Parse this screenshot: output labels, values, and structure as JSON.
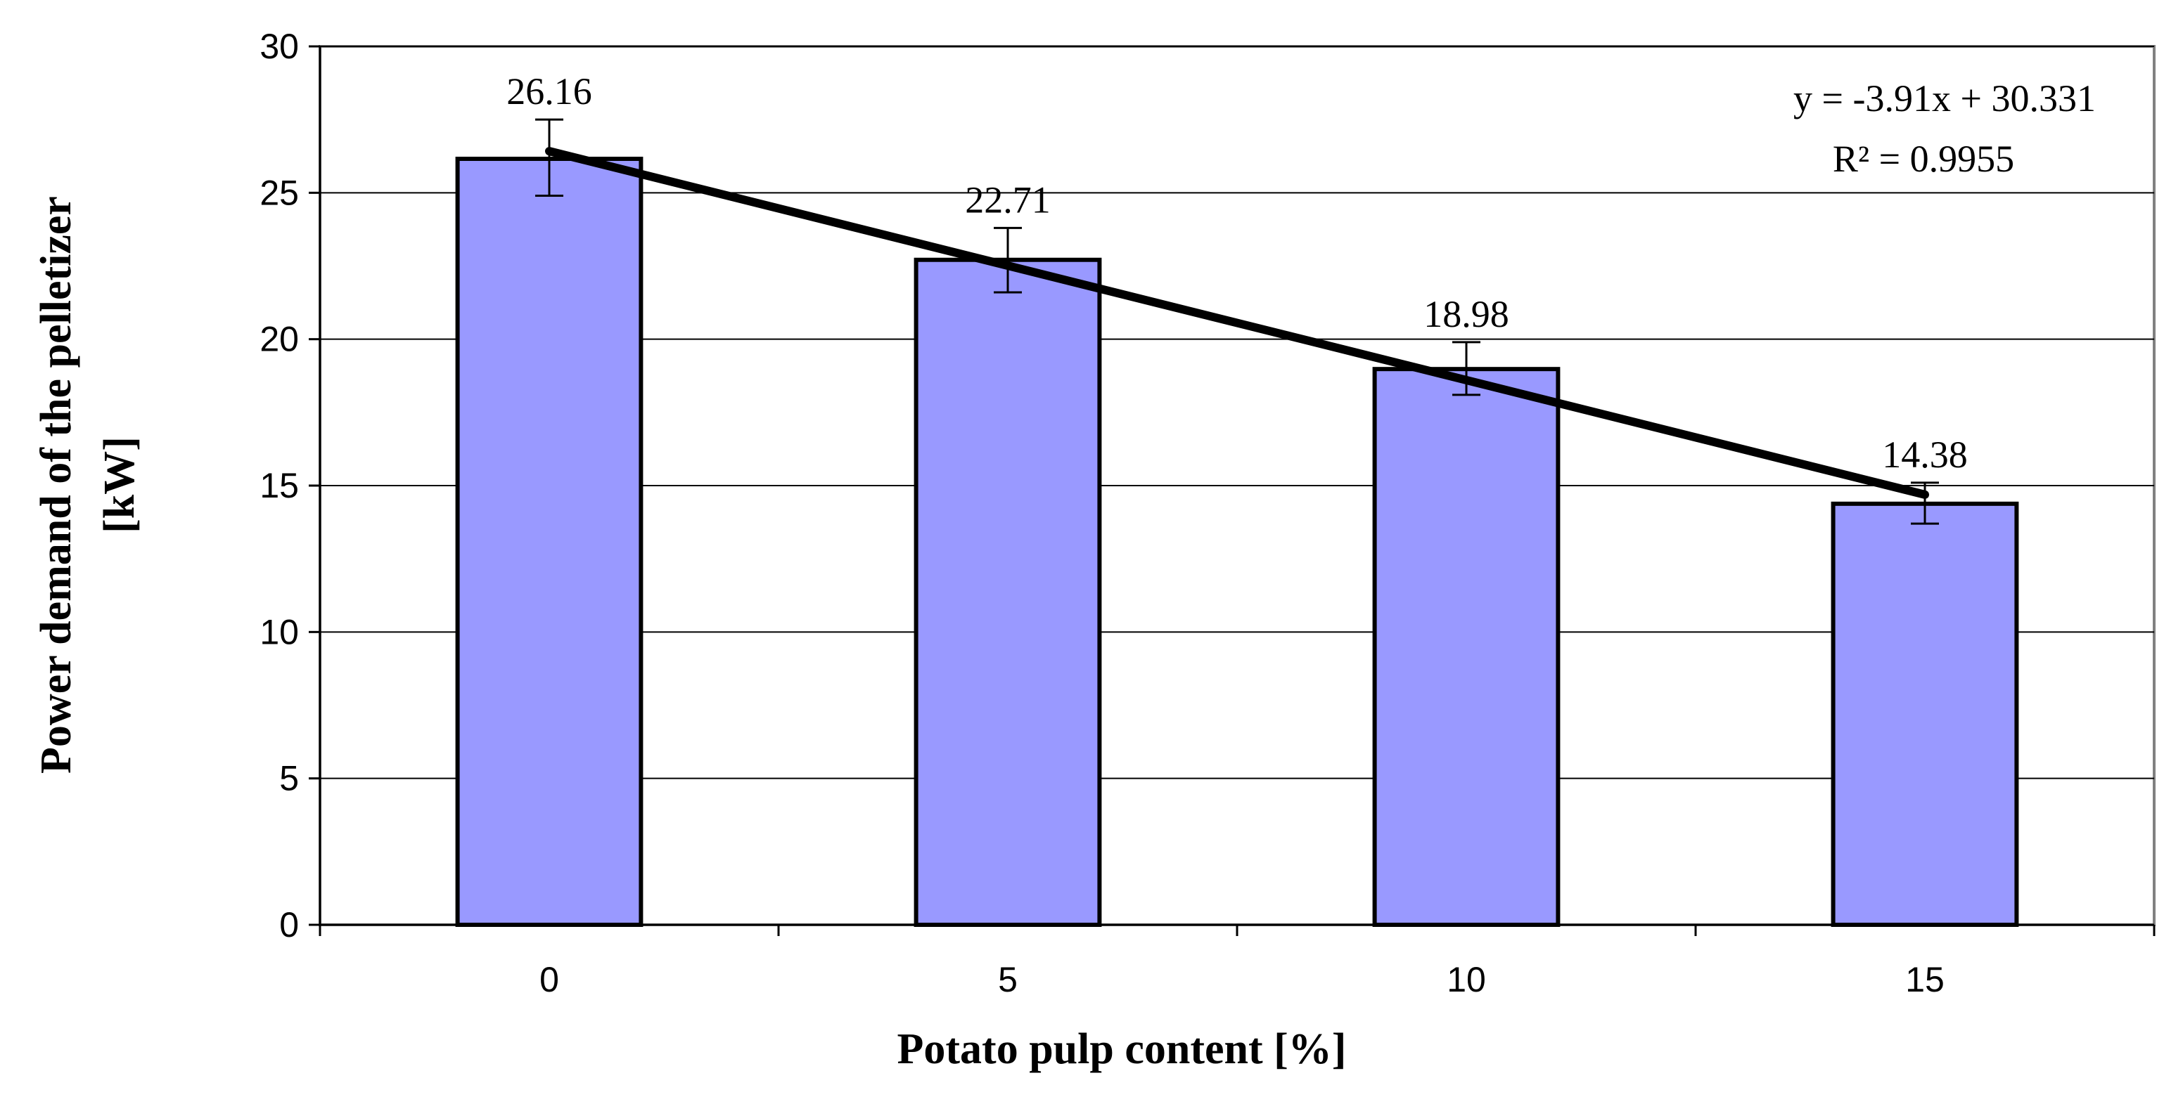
{
  "chart_data": {
    "type": "bar",
    "title": "",
    "xlabel": "Potato pulp content [%]",
    "ylabel_lines": [
      "Power demand of the pelletizer",
      "[kW]"
    ],
    "categories": [
      "0",
      "5",
      "10",
      "15"
    ],
    "x_numeric": [
      0,
      5,
      10,
      15
    ],
    "values": [
      26.16,
      22.71,
      18.98,
      14.38
    ],
    "data_labels": [
      "26.16",
      "22.71",
      "18.98",
      "14.38"
    ],
    "error_bars": [
      {
        "low": 24.9,
        "high": 27.5
      },
      {
        "low": 21.6,
        "high": 23.8
      },
      {
        "low": 18.1,
        "high": 19.9
      },
      {
        "low": 13.7,
        "high": 15.1
      }
    ],
    "ylim": [
      0,
      30
    ],
    "yticks": [
      0,
      5,
      10,
      15,
      20,
      25,
      30
    ],
    "ytick_labels": [
      "0",
      "5",
      "10",
      "15",
      "20",
      "25",
      "30"
    ],
    "grid": true,
    "legend": "none",
    "trendline": {
      "type": "linear",
      "slope": -3.91,
      "intercept": 30.331,
      "equation": "y = -3.91x + 30.331",
      "r_squared": "R² = 0.9955"
    },
    "colors": {
      "bar_fill": "#9999ff",
      "bar_stroke": "#000000",
      "grid": "#000000",
      "trendline": "#000000",
      "plot_border": "#808080"
    }
  }
}
